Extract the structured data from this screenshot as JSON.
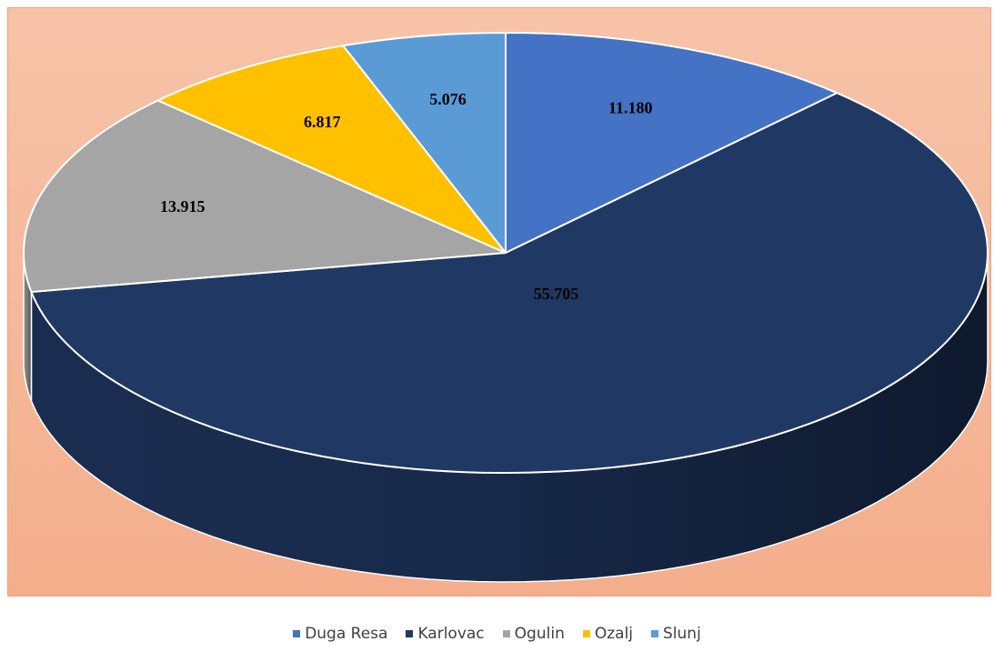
{
  "chart_data": {
    "type": "pie",
    "title": "",
    "categories": [
      "Duga Resa",
      "Karlovac",
      "Ogulin",
      "Ozalj",
      "Slunj"
    ],
    "values": [
      11180,
      55705,
      13915,
      6817,
      5076
    ],
    "value_labels": [
      "11.180",
      "55.705",
      "13.915",
      "6.817",
      "5.076"
    ],
    "colors": [
      "#4472c4",
      "#203864",
      "#a5a5a5",
      "#ffc000",
      "#5b9bd5"
    ],
    "style": "3d",
    "legend_position": "bottom",
    "background_color": "#f6b898"
  }
}
